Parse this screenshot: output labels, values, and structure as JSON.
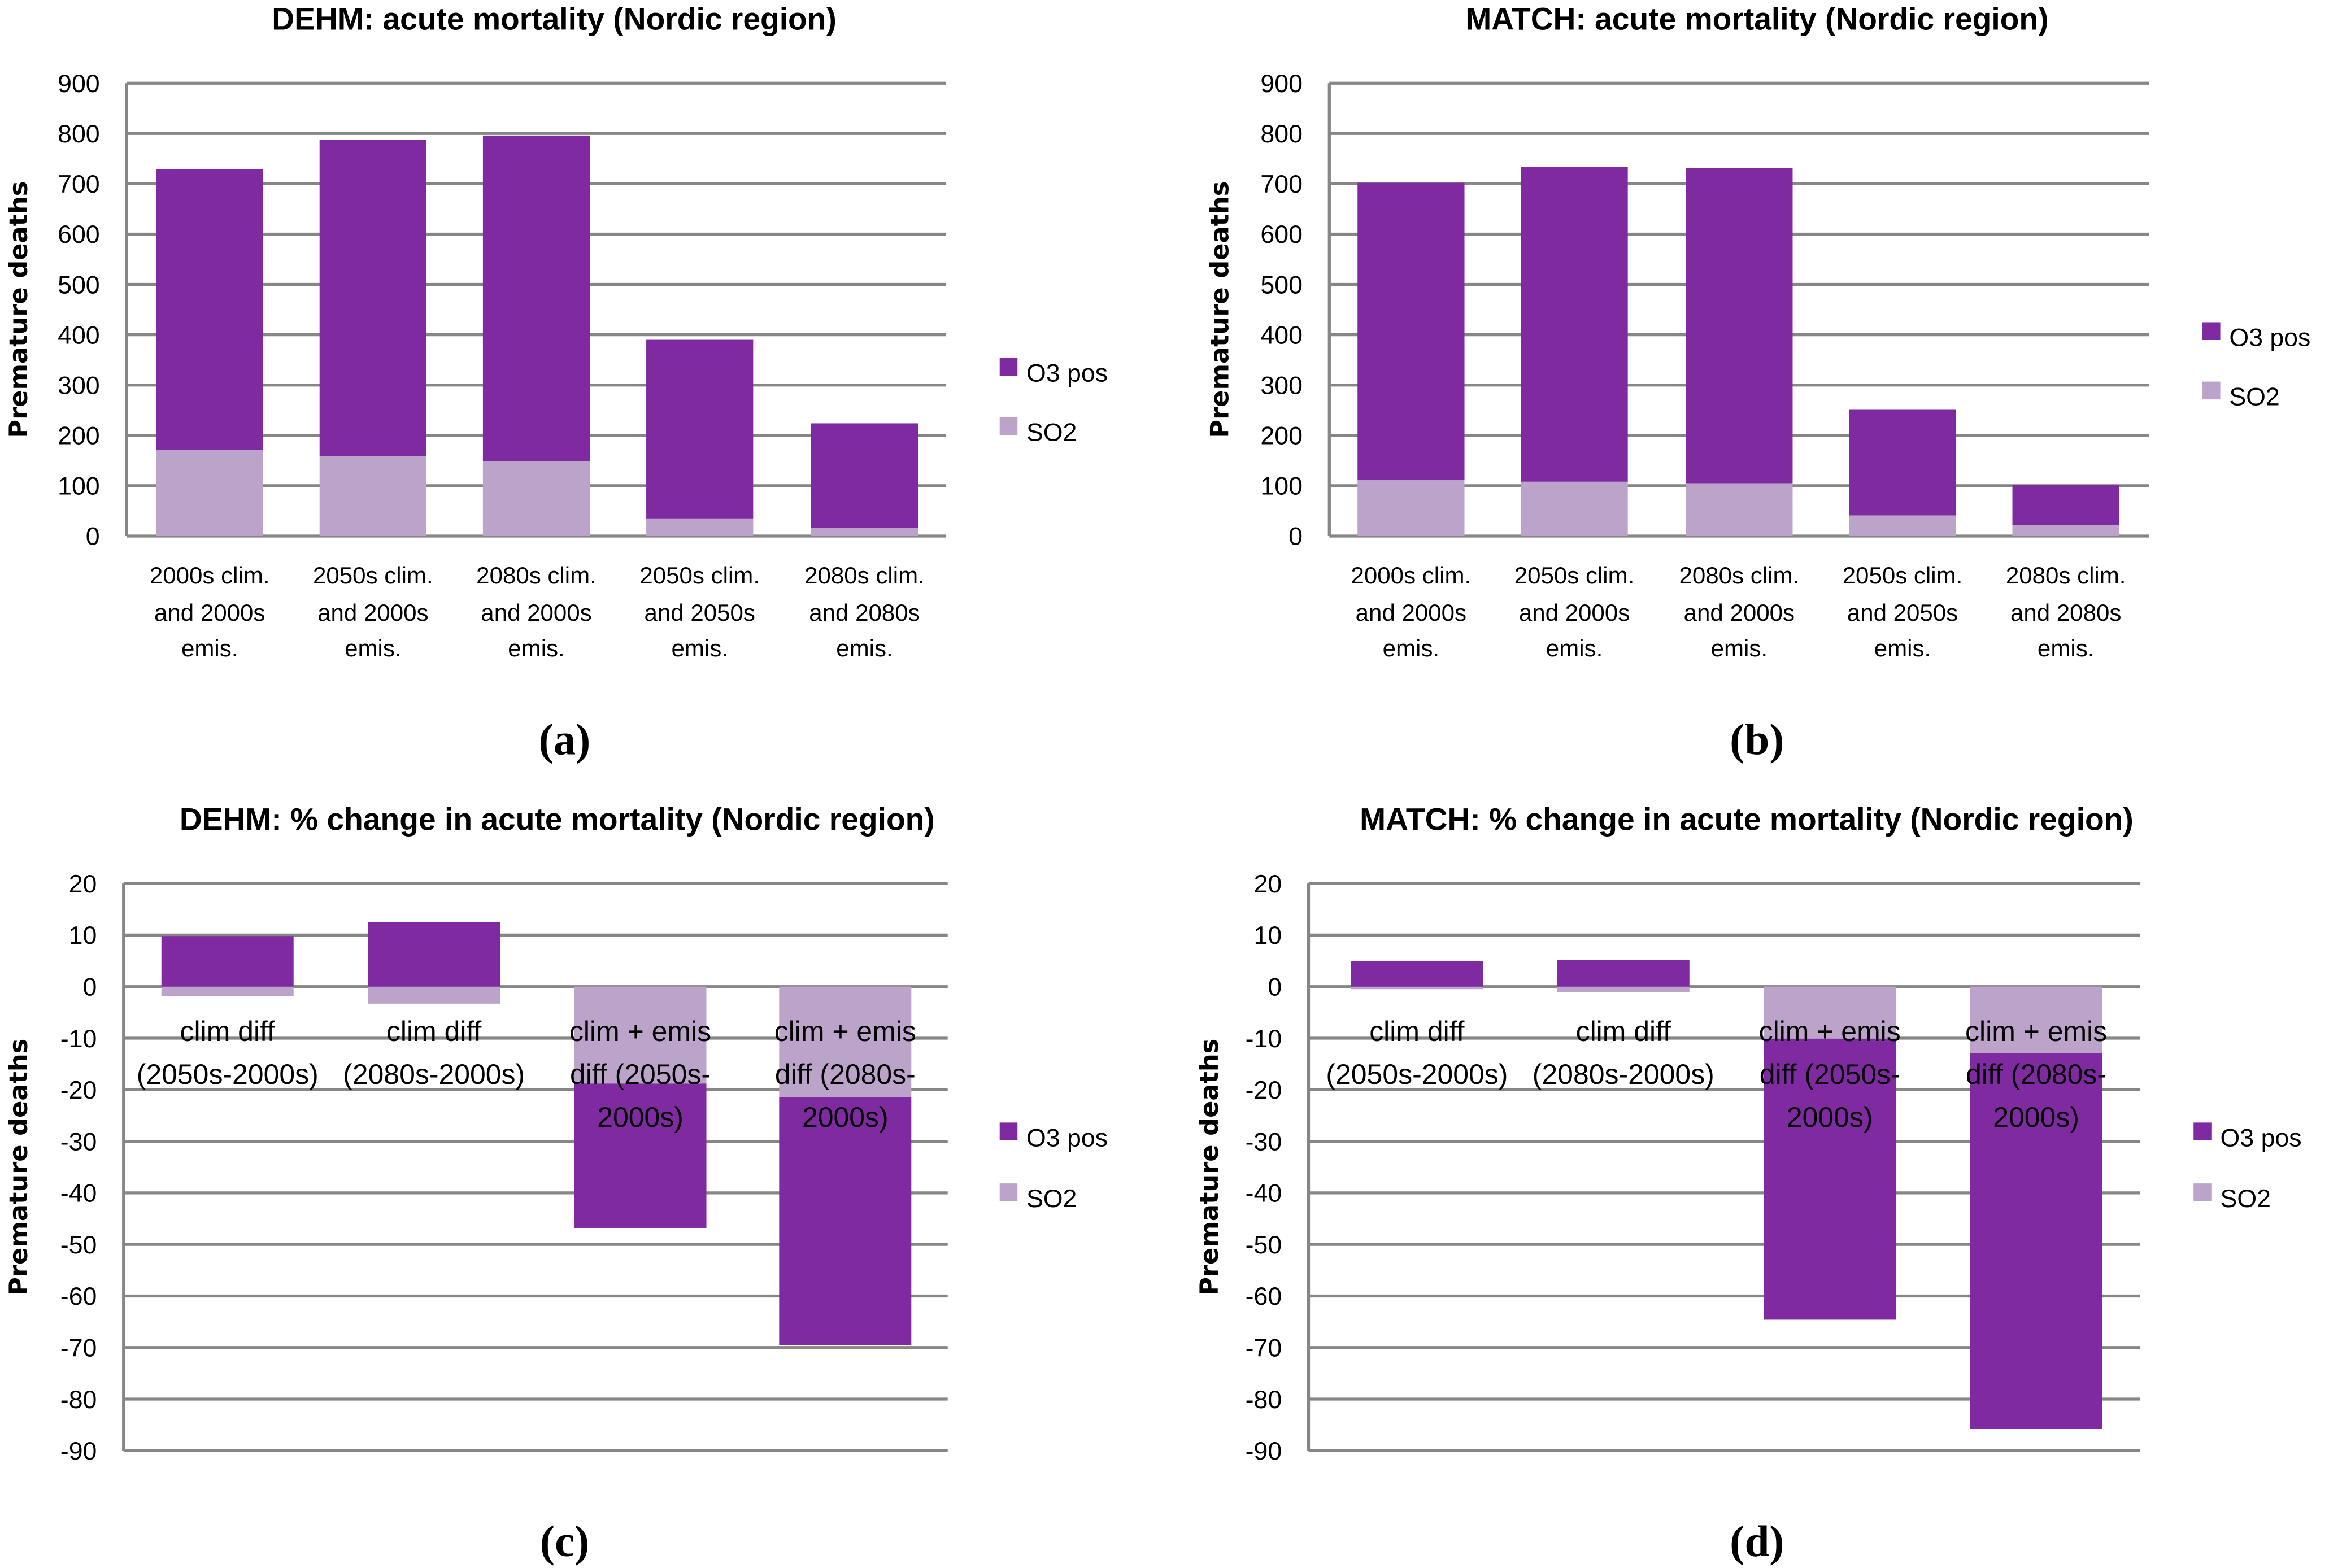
{
  "colors": {
    "o3": "#7f2aa1",
    "so2": "#bba3c9",
    "grid": "#868686"
  },
  "chart_data": [
    {
      "type": "bar",
      "stacked": true,
      "panel": "(a)",
      "title": "DEHM: acute mortality (Nordic region)",
      "ylabel": "Premature deaths",
      "xlabel": "",
      "ylim": [
        0,
        900
      ],
      "yticks": [
        0,
        100,
        200,
        300,
        400,
        500,
        600,
        700,
        800,
        900
      ],
      "categories": [
        [
          "2000s clim.",
          "and 2000s",
          "emis."
        ],
        [
          "2050s clim.",
          "and 2000s",
          "emis."
        ],
        [
          "2080s clim.",
          "and 2000s",
          "emis."
        ],
        [
          "2050s clim.",
          "and 2050s",
          "emis."
        ],
        [
          "2080s clim.",
          "and 2080s",
          "emis."
        ]
      ],
      "series": [
        {
          "name": "SO2",
          "values": [
            171,
            159,
            149,
            35,
            16
          ]
        },
        {
          "name": "O3 pos",
          "values": [
            558,
            628,
            647,
            355,
            208
          ]
        }
      ],
      "legend": "right",
      "grid": true
    },
    {
      "type": "bar",
      "stacked": true,
      "panel": "(b)",
      "title": "MATCH: acute mortality (Nordic region)",
      "ylabel": "Premature deaths",
      "xlabel": "",
      "ylim": [
        0,
        900
      ],
      "yticks": [
        0,
        100,
        200,
        300,
        400,
        500,
        600,
        700,
        800,
        900
      ],
      "categories": [
        [
          "2000s clim.",
          "and 2000s",
          "emis."
        ],
        [
          "2050s clim.",
          "and 2000s",
          "emis."
        ],
        [
          "2080s clim.",
          "and 2000s",
          "emis."
        ],
        [
          "2050s clim.",
          "and 2050s",
          "emis."
        ],
        [
          "2080s clim.",
          "and 2080s",
          "emis."
        ]
      ],
      "series": [
        {
          "name": "SO2",
          "values": [
            111,
            108,
            105,
            41,
            22
          ]
        },
        {
          "name": "O3 pos",
          "values": [
            591,
            625,
            626,
            211,
            80
          ]
        }
      ],
      "legend": "right",
      "grid": true
    },
    {
      "type": "bar",
      "stacked": true,
      "panel": "(c)",
      "title": "DEHM: % change in acute mortality (Nordic region)",
      "ylabel": "Premature deaths",
      "xlabel": "",
      "ylim": [
        -90,
        20
      ],
      "yticks": [
        20,
        10,
        0,
        -10,
        -20,
        -30,
        -40,
        -50,
        -60,
        -70,
        -80,
        -90
      ],
      "categories": [
        [
          "clim diff",
          "(2050s-2000s)"
        ],
        [
          "clim diff",
          "(2080s-2000s)"
        ],
        [
          "clim + emis",
          "diff (2050s-",
          "2000s)"
        ],
        [
          "clim + emis",
          "diff (2080s-",
          "2000s)"
        ]
      ],
      "series": [
        {
          "name": "SO2",
          "values": [
            -1.8,
            -3.3,
            -18.8,
            -21.4
          ]
        },
        {
          "name": "O3 pos",
          "values": [
            9.8,
            12.5,
            -28.0,
            -48.1
          ]
        }
      ],
      "legend": "right",
      "grid": true
    },
    {
      "type": "bar",
      "stacked": true,
      "panel": "(d)",
      "title": "MATCH: % change in acute mortality (Nordic region)",
      "ylabel": "Premature deaths",
      "xlabel": "",
      "ylim": [
        -90,
        20
      ],
      "yticks": [
        20,
        10,
        0,
        -10,
        -20,
        -30,
        -40,
        -50,
        -60,
        -70,
        -80,
        -90
      ],
      "categories": [
        [
          "clim diff",
          "(2050s-2000s)"
        ],
        [
          "clim diff",
          "(2080s-2000s)"
        ],
        [
          "clim + emis",
          "diff (2050s-",
          "2000s)"
        ],
        [
          "clim + emis",
          "diff (2080s-",
          "2000s)"
        ]
      ],
      "series": [
        {
          "name": "SO2",
          "values": [
            -0.5,
            -1.1,
            -10.1,
            -12.9
          ]
        },
        {
          "name": "O3 pos",
          "values": [
            4.9,
            5.2,
            -54.5,
            -72.9
          ]
        }
      ],
      "legend": "right",
      "grid": true
    }
  ]
}
